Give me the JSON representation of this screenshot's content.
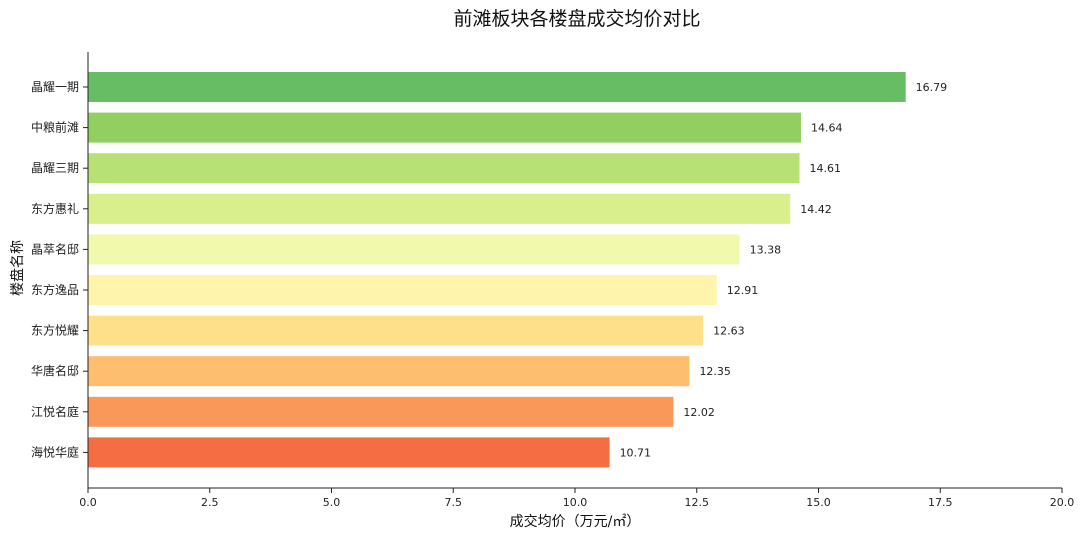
{
  "chart_data": {
    "type": "bar",
    "orientation": "horizontal",
    "title": "前滩板块各楼盘成交均价对比",
    "xlabel": "成交均价（万元/㎡）",
    "ylabel": "楼盘名称",
    "xlim": [
      0,
      20
    ],
    "xticks": [
      "0.0",
      "2.5",
      "5.0",
      "7.5",
      "10.0",
      "12.5",
      "15.0",
      "17.5",
      "20.0"
    ],
    "grid": false,
    "categories": [
      "晶耀一期",
      "中粮前滩",
      "晶耀三期",
      "东方惠礼",
      "晶萃名邸",
      "东方逸品",
      "东方悦耀",
      "华唐名邸",
      "江悦名庭",
      "海悦华庭"
    ],
    "values": [
      16.79,
      14.64,
      14.61,
      14.42,
      13.38,
      12.91,
      12.63,
      12.35,
      12.02,
      10.71
    ],
    "value_labels": [
      "16.79",
      "14.64",
      "14.61",
      "14.42",
      "13.38",
      "12.91",
      "12.63",
      "12.35",
      "12.02",
      "10.71"
    ],
    "colors": [
      "#66bd63",
      "#91cf60",
      "#b7e075",
      "#d9ef8b",
      "#f1f9ac",
      "#fff4ac",
      "#fee08b",
      "#fdbe6f",
      "#f99858",
      "#f46d43"
    ]
  }
}
